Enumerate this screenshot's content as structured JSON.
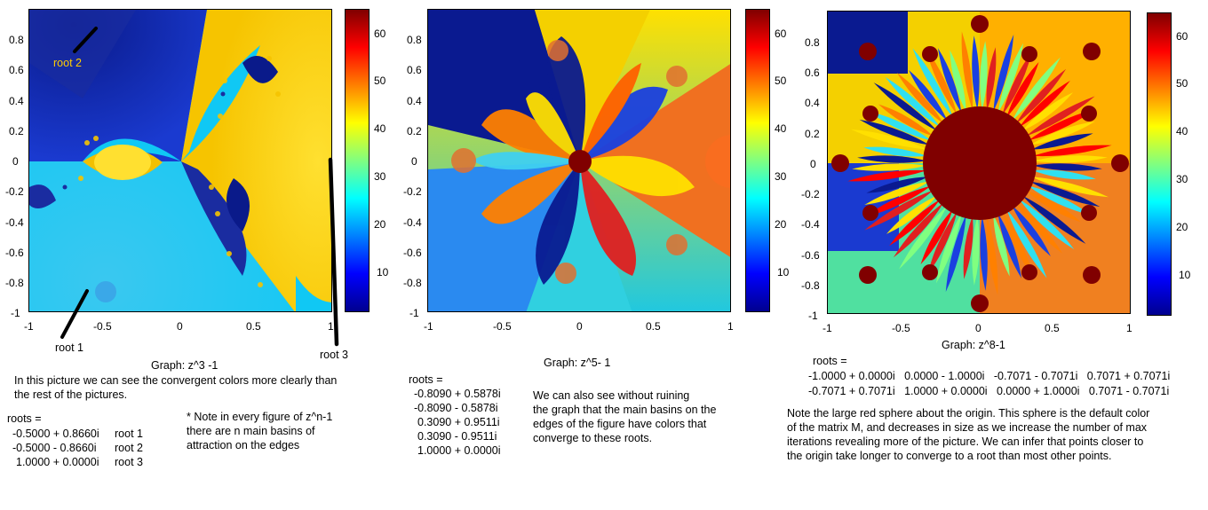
{
  "colorbar_colors": [
    "#00008f",
    "#0000ff",
    "#0080ff",
    "#00ffff",
    "#80ff80",
    "#ffff00",
    "#ff8000",
    "#ff0000",
    "#800000"
  ],
  "chart_data": [
    {
      "type": "heatmap",
      "title": "Graph: z^3 -1",
      "xlim": [
        -1,
        1
      ],
      "ylim": [
        -1,
        1
      ],
      "x_ticks": [
        "-1",
        "-0.5",
        "0",
        "0.5",
        "1"
      ],
      "y_ticks": [
        "0.8",
        "0.6",
        "0.4",
        "0.2",
        "0",
        "-0.2",
        "-0.4",
        "-0.6",
        "-0.8",
        "-1"
      ],
      "colorbar_ticks": [
        "60",
        "50",
        "40",
        "30",
        "20",
        "10"
      ],
      "colorbar_range": [
        1,
        64
      ],
      "roots": [
        [
          -0.5,
          0.866
        ],
        [
          -0.5,
          -0.866
        ],
        [
          1.0,
          0.0
        ]
      ],
      "annotations": [
        "root 2",
        "root 1",
        "root 3"
      ],
      "notes": {
        "intro": [
          "In this picture we can see the convergent colors more clearly than",
          "the rest of the pictures."
        ],
        "roots_label": "roots =",
        "roots_rows": [
          {
            "value": "-0.5000 + 0.8660i",
            "label": "root 1"
          },
          {
            "value": "-0.5000 - 0.8660i",
            "label": "root 2"
          },
          {
            "value": "1.0000 + 0.0000i",
            "label": "root 3"
          }
        ],
        "side_note": [
          "* Note in every figure  of z^n-1",
          "there are n main basins of",
          "attraction on the edges"
        ]
      }
    },
    {
      "type": "heatmap",
      "title": "Graph: z^5- 1",
      "xlim": [
        -1,
        1
      ],
      "ylim": [
        -1,
        1
      ],
      "x_ticks": [
        "-1",
        "-0.5",
        "0",
        "0.5",
        "1"
      ],
      "y_ticks": [
        "0.8",
        "0.6",
        "0.4",
        "0.2",
        "0",
        "-0.2",
        "-0.4",
        "-0.6",
        "-0.8",
        "-1"
      ],
      "colorbar_ticks": [
        "60",
        "50",
        "40",
        "30",
        "20",
        "10"
      ],
      "colorbar_range": [
        1,
        64
      ],
      "roots": [
        [
          -0.809,
          0.5878
        ],
        [
          -0.809,
          -0.5878
        ],
        [
          0.309,
          0.9511
        ],
        [
          0.309,
          -0.9511
        ],
        [
          1.0,
          0.0
        ]
      ],
      "notes": {
        "roots_label": "roots =",
        "roots_rows": [
          "-0.8090 + 0.5878i",
          "-0.8090 - 0.5878i",
          "0.3090 + 0.9511i",
          "0.3090 - 0.9511i",
          "1.0000 + 0.0000i"
        ],
        "side_note": [
          "We can also see without ruining",
          "the graph that the main basins on the",
          "edges of the figure have colors that",
          "converge to these roots."
        ]
      }
    },
    {
      "type": "heatmap",
      "title": "Graph: z^8-1",
      "xlim": [
        -1,
        1
      ],
      "ylim": [
        -1,
        1
      ],
      "x_ticks": [
        "-1",
        "-0.5",
        "0",
        "0.5",
        "1"
      ],
      "y_ticks": [
        "0.8",
        "0.6",
        "0.4",
        "0.2",
        "0",
        "-0.2",
        "-0.4",
        "-0.6",
        "-0.8",
        "-1"
      ],
      "colorbar_ticks": [
        "60",
        "50",
        "40",
        "30",
        "20",
        "10"
      ],
      "colorbar_range": [
        1,
        64
      ],
      "roots": [
        [
          -1,
          0
        ],
        [
          0,
          -1
        ],
        [
          -0.7071,
          -0.7071
        ],
        [
          0.7071,
          0.7071
        ],
        [
          -0.7071,
          0.7071
        ],
        [
          1,
          0
        ],
        [
          0,
          1
        ],
        [
          0.7071,
          -0.7071
        ]
      ],
      "notes": {
        "roots_label": "roots =",
        "roots_line1": "-1.0000 + 0.0000i   0.0000 - 1.0000i   -0.7071 - 0.7071i   0.7071 + 0.7071i",
        "roots_line2": "-0.7071 + 0.7071i   1.0000 + 0.0000i   0.0000 + 1.0000i   0.7071 - 0.7071i",
        "paragraph": [
          "Note the large red sphere about the origin. This sphere is the default color",
          "of the matrix M, and decreases in size as we increase the number of max",
          "iterations revealing more of the picture. We can infer that points closer to",
          "the origin take longer to converge to a root than most other points."
        ]
      }
    }
  ]
}
